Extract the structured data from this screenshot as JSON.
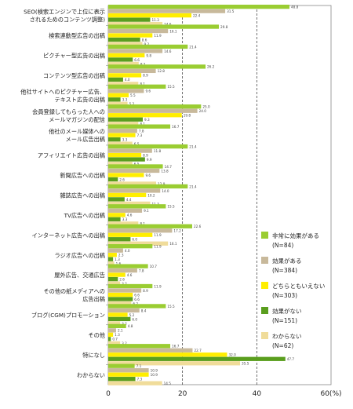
{
  "chart_data": {
    "type": "bar",
    "orientation": "horizontal",
    "categories": [
      "SEO(検索エンジンで上位に表示|されるためのコンテンツ調整)",
      "検索連動型広告の出稿",
      "ピクチャー型広告の出稿",
      "コンテンツ型広告の出稿",
      "他社サイトへのピクチャー広告、|テキスト広告の出稿",
      "会員登録してもらった人への|メールマガジンの配信",
      "他社のメール媒体への|メール広告出稿",
      "アフィリエイト広告の出稿",
      "新聞広告への出稿",
      "雑誌広告への出稿",
      "TV広告への出稿",
      "インターネット広告への出稿",
      "ラジオ広告への出稿",
      "屋外広告、交通広告",
      "その他の紙メディアへの|広告出稿",
      "ブログ(CGM)プロモーション",
      "その他",
      "特になし",
      "わからない"
    ],
    "series": [
      {
        "name": "非常に効果がある|(N=84)",
        "color": "#9acd32",
        "values": [
          48.8,
          29.8,
          21.4,
          26.2,
          15.5,
          25.0,
          16.7,
          21.4,
          14.7,
          21.4,
          15.5,
          22.6,
          11.9,
          10.7,
          11.9,
          15.5,
          4.8,
          16.7,
          7.1
        ]
      },
      {
        "name": "効果がある|(N=384)",
        "color": "#c8b99b",
        "values": [
          31.5,
          16.1,
          14.6,
          12.8,
          9.6,
          24.0,
          7.8,
          11.8,
          13.8,
          14.0,
          9.1,
          17.2,
          4.0,
          7.8,
          8.9,
          8.4,
          2.1,
          22.7,
          10.9
        ]
      },
      {
        "name": "どちらともいえない|(N=303)",
        "color": "#ffee00",
        "values": [
          22.4,
          11.9,
          9.8,
          8.9,
          5.5,
          19.8,
          7.3,
          8.9,
          9.6,
          10.2,
          4.6,
          11.9,
          2.3,
          4.6,
          6.6,
          5.2,
          1.3,
          32.0,
          10.9
        ]
      },
      {
        "name": "効果がない|(N=151)",
        "color": "#5a9e1e",
        "values": [
          11.3,
          8.6,
          6.6,
          4.0,
          3.3,
          9.3,
          3.3,
          9.9,
          2.6,
          4.4,
          3.3,
          6.0,
          1.3,
          2.6,
          6.6,
          6.0,
          0.7,
          47.7,
          7.3
        ]
      },
      {
        "name": "わからない|(N=62)",
        "color": "#f0dc9a",
        "values": [
          14.6,
          9.2,
          8.2,
          8.1,
          5.2,
          8.1,
          6.5,
          6.5,
          12.9,
          11.3,
          8.1,
          16.1,
          1.6,
          3.2,
          6.2,
          3.2,
          3.2,
          35.5,
          14.5
        ]
      }
    ],
    "data_labels": {
      "非常に効果がある": [
        "48.8",
        "29.8",
        "21.4",
        "26.2",
        "15.5",
        "25.0",
        "16.7",
        "21.4",
        "14.7",
        "21.4",
        "15.5",
        "22.6",
        "11.9",
        "10.7",
        "11.9",
        "15.5",
        "4.8",
        "16.7",
        "7.1"
      ],
      "効果がある": [
        "31.5",
        "16.1",
        "14.6",
        "12.8",
        "9.6",
        "24.0",
        "7.8",
        "11.8",
        "13.8",
        "14.0",
        "9.1",
        "17.2",
        "4.0",
        "7.8",
        "8.9",
        "8.4",
        "2.1",
        "22.7",
        "10.9"
      ],
      "どちらともいえない": [
        "22.4",
        "11.9",
        "9.8",
        "8.9",
        "5.5",
        "19.8",
        "7.3",
        "8.9",
        "9.6",
        "10.2",
        "4.6",
        "11.9",
        "2.3",
        "4.6",
        "6.6",
        "5.2",
        "1.3",
        "32.0",
        "10.9"
      ],
      "効果がない": [
        "11.3",
        "8.6",
        "6.6",
        "4.0",
        "3.3",
        "9.3",
        "3.3",
        "9.9",
        "2.6",
        "4.4",
        "3.3",
        "6.0",
        "1.3",
        "2.6",
        "6.6",
        "6.0",
        "0.7",
        "47.7",
        "7.3"
      ],
      "わからない": [
        "14.6",
        "9.2",
        "8.2",
        "8.1",
        "5.2",
        "8.1",
        "6.5",
        "6.5",
        "12.9",
        "11.3",
        "8.1",
        "16.1",
        "1.6",
        "3.2",
        "6.2",
        "3.2",
        "3.2",
        "35.5",
        "14.5"
      ]
    },
    "xlim": [
      0,
      60
    ],
    "ticks": [
      0,
      20,
      40,
      60
    ],
    "tick_labels": [
      "0",
      "20",
      "40",
      "60(%)"
    ],
    "gridlines": {
      "style": "dashed",
      "at": [
        20,
        40
      ]
    },
    "legend": {
      "position": "right"
    },
    "title": "",
    "xlabel": "",
    "ylabel": ""
  }
}
